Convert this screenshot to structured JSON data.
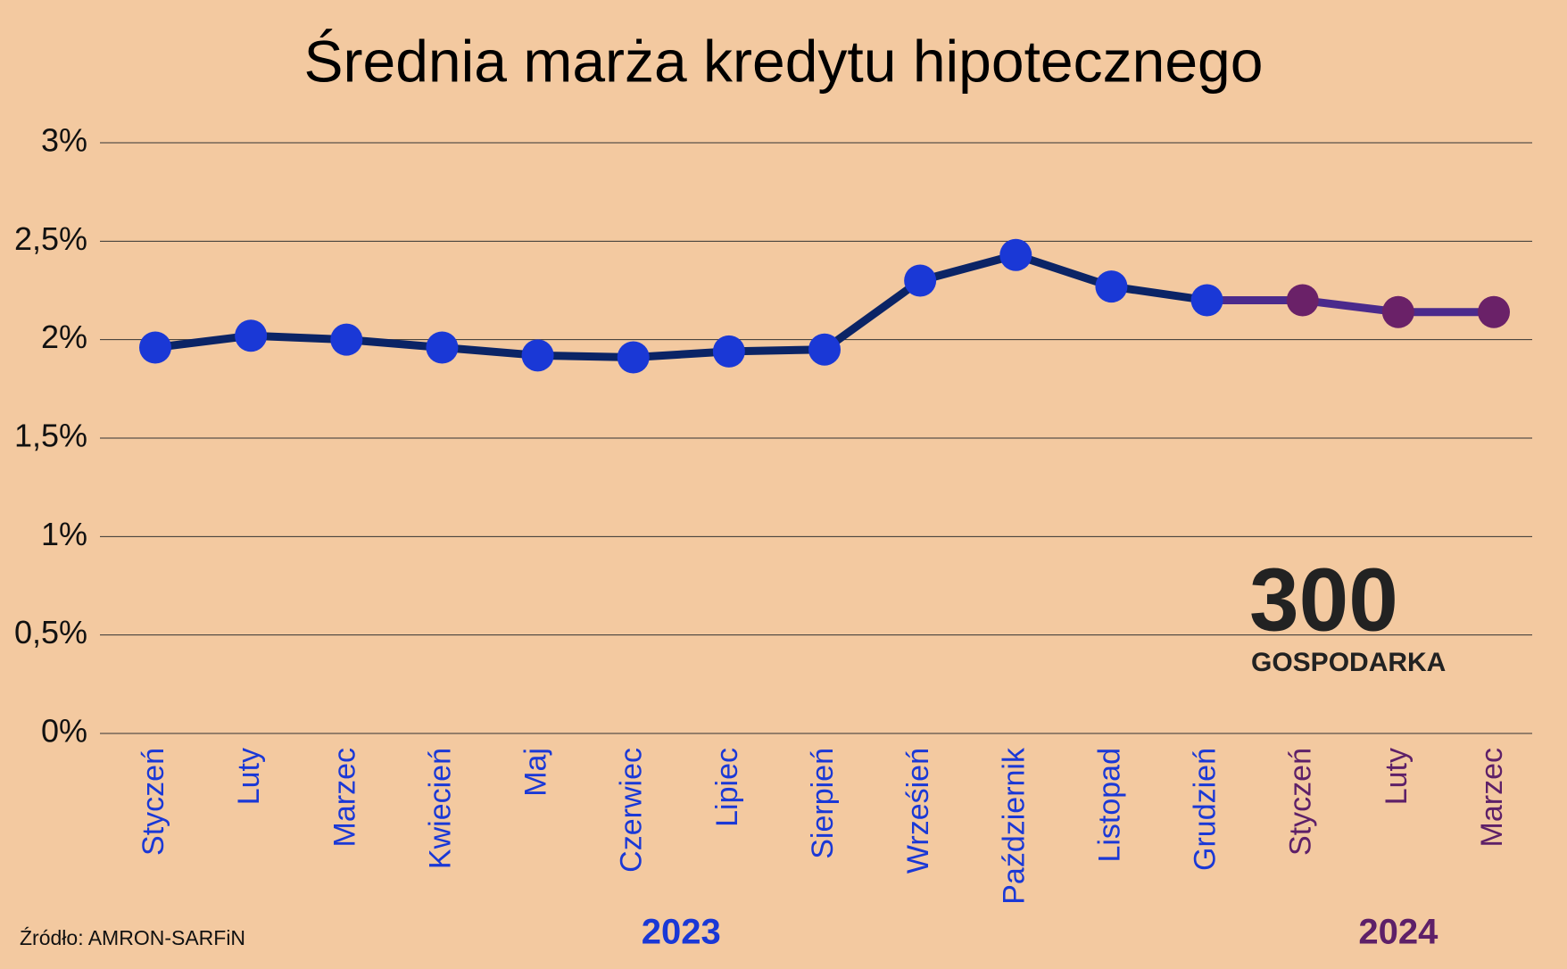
{
  "chart_data": {
    "type": "line",
    "title": "Średnia marża kredytu hipotecznego",
    "categories": [
      "Styczeń",
      "Luty",
      "Marzec",
      "Kwiecień",
      "Maj",
      "Czerwiec",
      "Lipiec",
      "Sierpień",
      "Wrześień",
      "Październik",
      "Listopad",
      "Grudzień",
      "Styczeń",
      "Luty",
      "Marzec"
    ],
    "series": [
      {
        "name": "2023",
        "color": "#0b2466",
        "marker_color": "#1a38d6",
        "label_color": "#1a38d6",
        "values": [
          1.96,
          2.02,
          2.0,
          1.96,
          1.92,
          1.91,
          1.94,
          1.95,
          2.3,
          2.43,
          2.27,
          2.2,
          null,
          null,
          null
        ]
      },
      {
        "name": "2024",
        "color": "#4b2a8c",
        "marker_color": "#6a2168",
        "label_color": "#5e2068",
        "values": [
          null,
          null,
          null,
          null,
          null,
          null,
          null,
          null,
          null,
          null,
          null,
          null,
          2.2,
          2.14,
          2.14
        ]
      }
    ],
    "ylim": [
      0,
      3
    ],
    "yticks": [
      {
        "value": 0,
        "label": "0%"
      },
      {
        "value": 0.5,
        "label": "0,5%"
      },
      {
        "value": 1,
        "label": "1%"
      },
      {
        "value": 1.5,
        "label": "1,5%"
      },
      {
        "value": 2,
        "label": "2%"
      },
      {
        "value": 2.5,
        "label": "2,5%"
      },
      {
        "value": 3,
        "label": "3%"
      }
    ],
    "grid": true,
    "source": "Źródło: AMRON-SARFiN",
    "logo": {
      "number": "300",
      "name": "GOSPODARKA"
    }
  }
}
